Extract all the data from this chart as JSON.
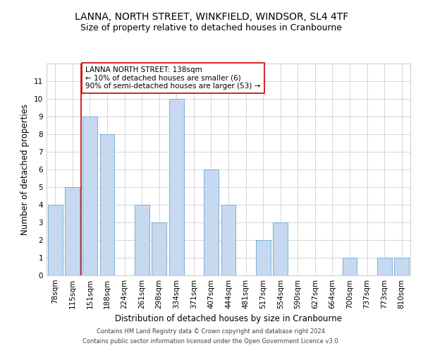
{
  "title": "LANNA, NORTH STREET, WINKFIELD, WINDSOR, SL4 4TF",
  "subtitle": "Size of property relative to detached houses in Cranbourne",
  "xlabel": "Distribution of detached houses by size in Cranbourne",
  "ylabel": "Number of detached properties",
  "categories": [
    "78sqm",
    "115sqm",
    "151sqm",
    "188sqm",
    "224sqm",
    "261sqm",
    "298sqm",
    "334sqm",
    "371sqm",
    "407sqm",
    "444sqm",
    "481sqm",
    "517sqm",
    "554sqm",
    "590sqm",
    "627sqm",
    "664sqm",
    "700sqm",
    "737sqm",
    "773sqm",
    "810sqm"
  ],
  "values": [
    4,
    5,
    9,
    8,
    0,
    4,
    3,
    10,
    0,
    6,
    4,
    0,
    2,
    3,
    0,
    0,
    0,
    1,
    0,
    1,
    1
  ],
  "bar_color": "#c6d9f0",
  "bar_edge_color": "#7aafd4",
  "ylim": [
    0,
    12
  ],
  "yticks": [
    0,
    1,
    2,
    3,
    4,
    5,
    6,
    7,
    8,
    9,
    10,
    11,
    12
  ],
  "vline_x_index": 1.5,
  "vline_color": "#cc0000",
  "annotation_text": "LANNA NORTH STREET: 138sqm\n← 10% of detached houses are smaller (6)\n90% of semi-detached houses are larger (53) →",
  "annotation_box_color": "#ffffff",
  "annotation_box_edge_color": "#cc0000",
  "footer1": "Contains HM Land Registry data © Crown copyright and database right 2024.",
  "footer2": "Contains public sector information licensed under the Open Government Licence v3.0.",
  "grid_color": "#d0d0d0",
  "background_color": "#ffffff",
  "title_fontsize": 10,
  "subtitle_fontsize": 9,
  "tick_fontsize": 7.5,
  "ylabel_fontsize": 8.5,
  "xlabel_fontsize": 8.5,
  "annotation_fontsize": 7.5,
  "footer_fontsize": 6.0
}
